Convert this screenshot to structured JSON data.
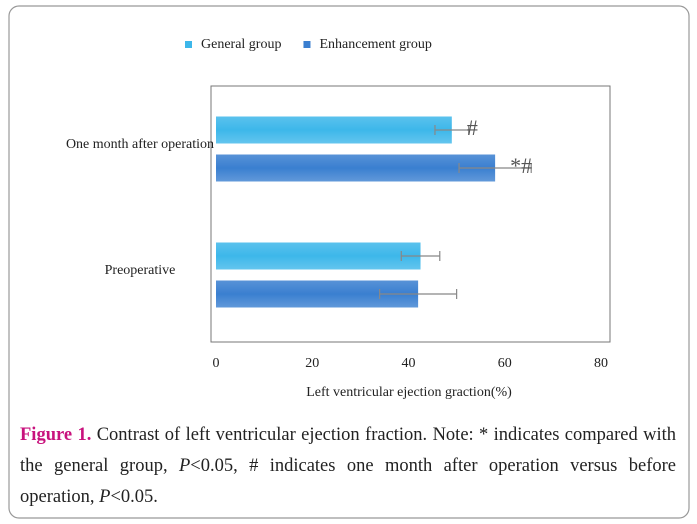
{
  "chart_data": {
    "type": "barh",
    "categories": [
      "One month after operation",
      "Preoperative"
    ],
    "series": [
      {
        "name": "General group",
        "color": "#3db7ea",
        "values": [
          49,
          42.5
        ],
        "errors": [
          3.5,
          4
        ],
        "annotations": [
          "#",
          null
        ]
      },
      {
        "name": "Enhancement group",
        "color": "#3a7fd0",
        "values": [
          58,
          42
        ],
        "errors": [
          7.5,
          8
        ],
        "annotations": [
          "*#",
          null
        ]
      }
    ],
    "xlabel": "Left ventricular ejection graction(%)",
    "xlim": [
      0,
      80
    ],
    "xticks": [
      0,
      20,
      40,
      60,
      80
    ],
    "grid": false,
    "legend": "top"
  },
  "caption": {
    "label": "Figure 1.",
    "parts": [
      "Contrast of left ventricular ejection fraction. Note: * indicates compared with the general group, ",
      "P",
      "<0.05, # indicates one month after operation versus before operation, ",
      "P",
      "<0.05."
    ]
  }
}
